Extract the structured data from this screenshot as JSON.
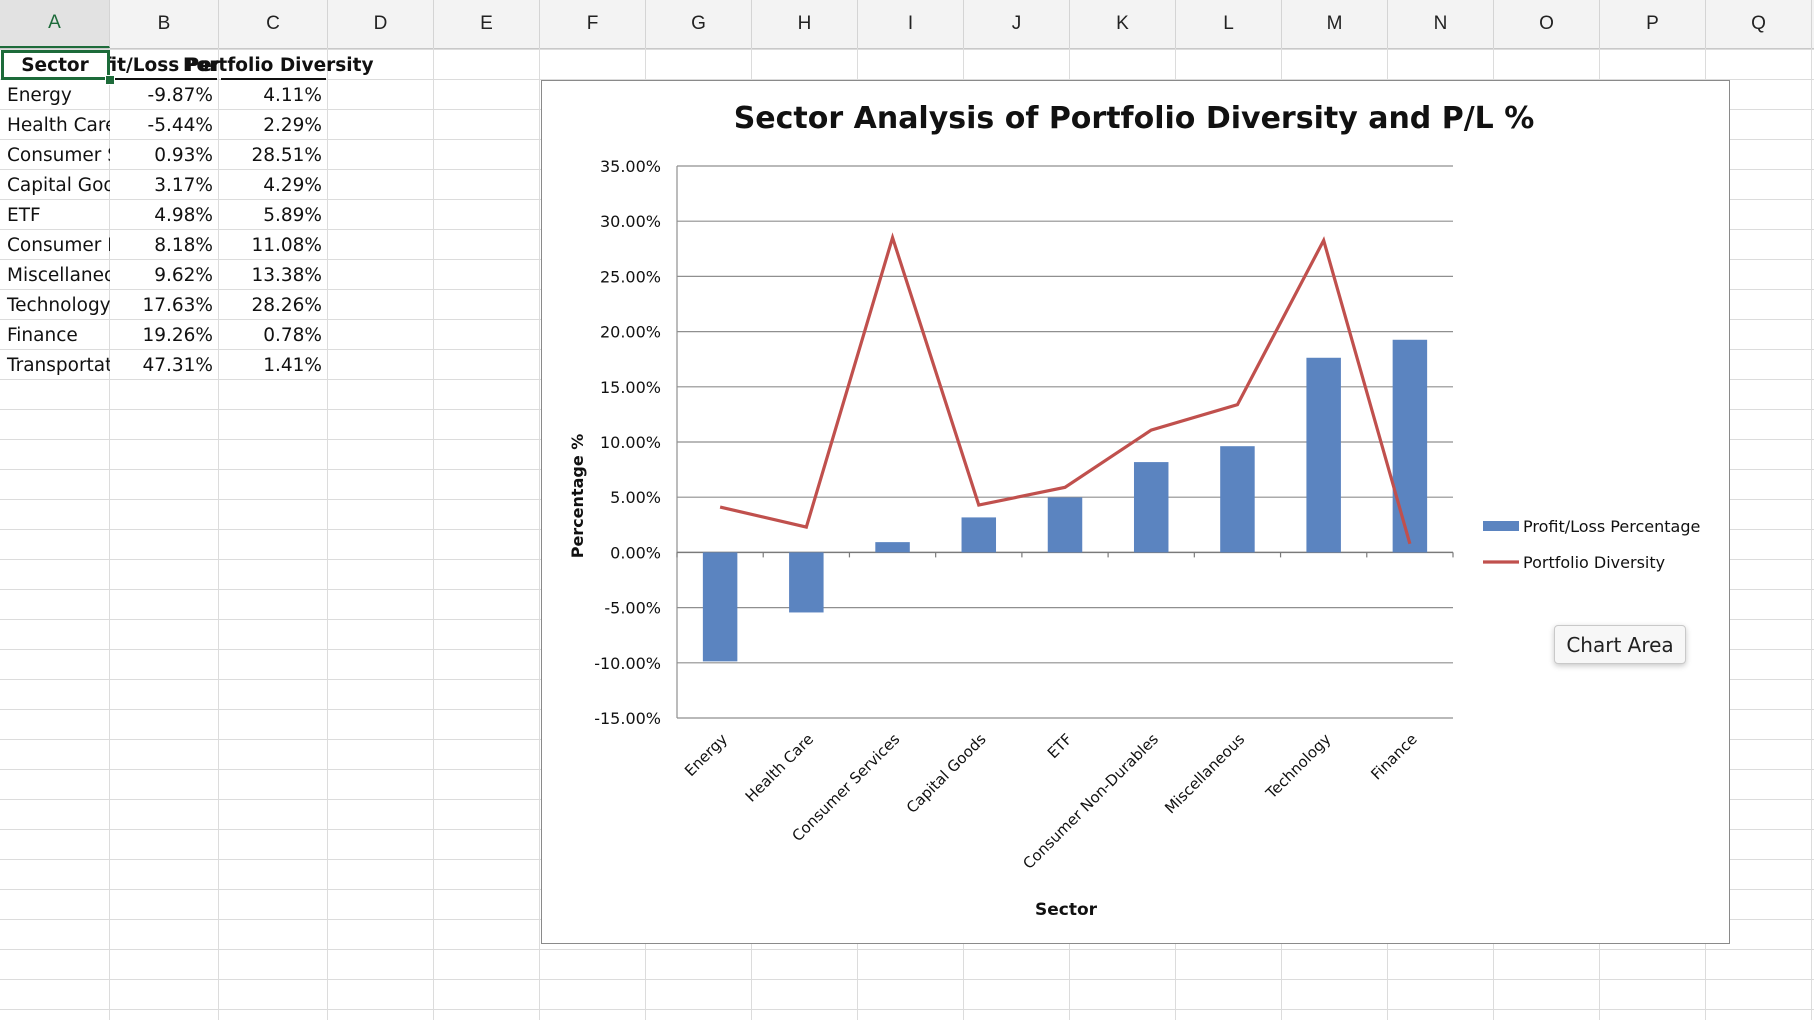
{
  "spreadsheet": {
    "columns": [
      "A",
      "B",
      "C",
      "D",
      "E",
      "F",
      "G",
      "H",
      "I",
      "J",
      "K",
      "L",
      "M",
      "N",
      "O",
      "P",
      "Q"
    ],
    "active_column": "A",
    "header_row": [
      "Sector",
      "Profit/Loss Percentage",
      "Portfolio Diversity"
    ],
    "rows": [
      [
        "Energy",
        "-9.87%",
        "4.11%"
      ],
      [
        "Health Care",
        "-5.44%",
        "2.29%"
      ],
      [
        "Consumer Services",
        "0.93%",
        "28.51%"
      ],
      [
        "Capital Goods",
        "3.17%",
        "4.29%"
      ],
      [
        "ETF",
        "4.98%",
        "5.89%"
      ],
      [
        "Consumer Non-Durables",
        "8.18%",
        "11.08%"
      ],
      [
        "Miscellaneous",
        "9.62%",
        "13.38%"
      ],
      [
        "Technology",
        "17.63%",
        "28.26%"
      ],
      [
        "Finance",
        "19.26%",
        "0.78%"
      ],
      [
        "Transportation",
        "47.31%",
        "1.41%"
      ]
    ]
  },
  "chart_data": {
    "type": "bar",
    "title": "Sector Analysis of Portfolio Diversity and P/L %",
    "xlabel": "Sector",
    "ylabel": "Percentage %",
    "categories": [
      "Energy",
      "Health Care",
      "Consumer Services",
      "Capital Goods",
      "ETF",
      "Consumer Non-Durables",
      "Miscellaneous",
      "Technology",
      "Finance"
    ],
    "series": [
      {
        "name": "Profit/Loss Percentage",
        "type": "bar",
        "color": "#5b84c0",
        "values": [
          -9.87,
          -5.44,
          0.93,
          3.17,
          4.98,
          8.18,
          9.62,
          17.63,
          19.26
        ]
      },
      {
        "name": "Portfolio Diversity",
        "type": "line",
        "color": "#c0504d",
        "values": [
          4.11,
          2.29,
          28.51,
          4.29,
          5.89,
          11.08,
          13.38,
          28.26,
          0.78
        ]
      }
    ],
    "ylim": [
      -15,
      35
    ],
    "ytick_step": 5,
    "ytick_format": "percent-2dp",
    "grid": true,
    "legend_position": "right"
  },
  "tooltip": {
    "text": "Chart Area"
  }
}
